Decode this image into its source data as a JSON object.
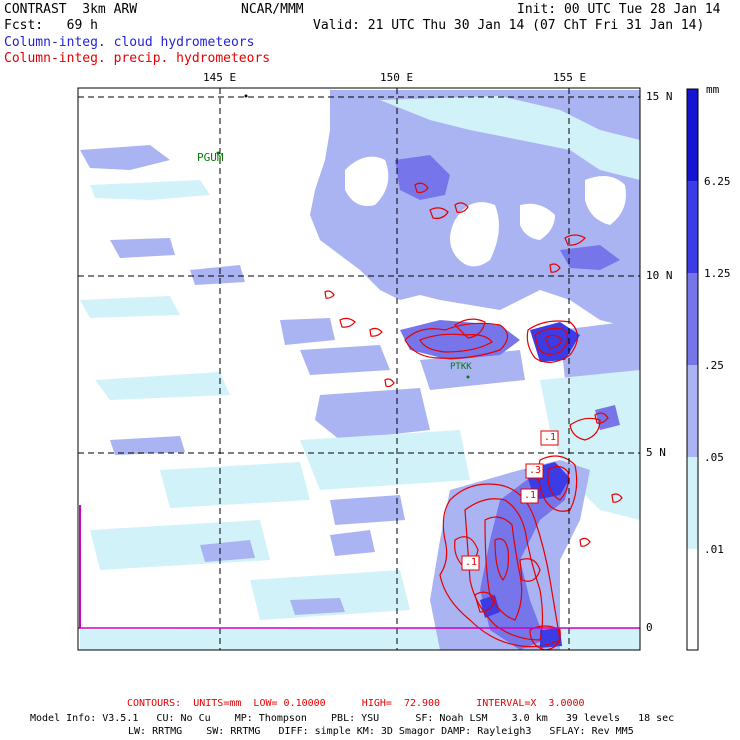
{
  "header": {
    "model": "CONTRAST  3km ARW",
    "org": "NCAR/MMM",
    "init": "Init: 00 UTC Tue 28 Jan 14",
    "fcst": "Fcst:   69 h",
    "valid": "Valid: 21 UTC Thu 30 Jan 14 (07 ChT Fri 31 Jan 14)",
    "field_blue": "Column-integ. cloud hydrometeors",
    "field_red": "Column-integ. precip. hydrometeors"
  },
  "axes": {
    "lon_labels": [
      "145 E",
      "150 E",
      "155 E"
    ],
    "lat_labels": [
      "15 N",
      "10 N",
      "5 N",
      "0"
    ]
  },
  "stations": [
    "PGUM",
    "PTKK"
  ],
  "contour_labels": [
    ".1",
    ".3",
    ".1",
    ".1"
  ],
  "colorbar": {
    "units": "mm",
    "levels": [
      "6.25",
      "1.25",
      ".25",
      ".05",
      ".01"
    ],
    "colors": [
      "#1414d2",
      "#3c3ce6",
      "#7676ea",
      "#aab4f2",
      "#d2f2fa",
      "#ffffff"
    ]
  },
  "footer": {
    "contours": "CONTOURS:  UNITS=mm  LOW= 0.10000      HIGH=  72.900      INTERVAL=X  3.0000",
    "info1": "Model Info: V3.5.1   CU: No Cu    MP: Thompson    PBL: YSU      SF: Noah LSM    3.0 km   39 levels   18 sec",
    "info2": "LW: RRTMG    SW: RRTMG   DIFF: simple KM: 3D Smagor DAMP: Rayleigh3   SFLAY: Rev MM5"
  },
  "colors": {
    "cloud_light": "#d2f2fa",
    "cloud_medium": "#aab4f2",
    "cloud_dark": "#7676ea",
    "precip_contour": "#e60000",
    "equator_line": "#cc00cc"
  }
}
